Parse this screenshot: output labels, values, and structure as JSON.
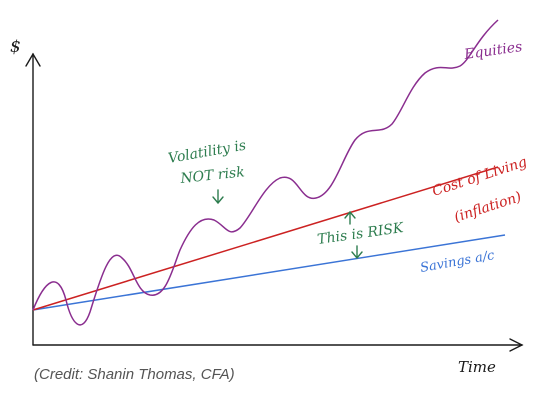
{
  "chart_data": {
    "type": "line",
    "axis": {
      "y_label": "$",
      "x_label": "Time"
    },
    "series": [
      {
        "name": "Equities",
        "color": "#8a2e8f"
      },
      {
        "name": "Cost of Living (inflation)",
        "color": "#cc2222"
      },
      {
        "name": "Savings a/c",
        "color": "#3b74d6"
      }
    ],
    "annotations": {
      "volatility_line1": "Volatility is",
      "volatility_line2": "NOT risk",
      "risk": "This is RISK",
      "inflation_line1": "Cost of Living",
      "inflation_line2": "(inflation)"
    },
    "label_color": "#2e7d4f"
  },
  "credit": "(Credit: Shanin Thomas, CFA)"
}
